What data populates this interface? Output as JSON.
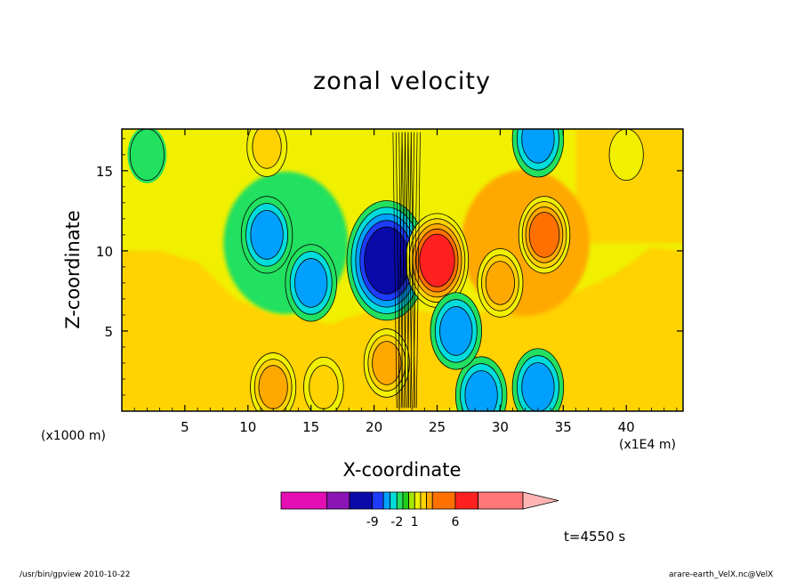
{
  "chart_data": {
    "type": "heatmap",
    "title": "zonal velocity",
    "xlabel": "X-coordinate",
    "ylabel": "Z-coordinate",
    "x_unit": "(x1000 m)",
    "x_scale_note": "(x1E4 m)",
    "xlim": [
      0,
      44.5
    ],
    "ylim": [
      0,
      17.6
    ],
    "x_ticks": [
      5,
      10,
      15,
      20,
      25,
      30,
      35,
      40
    ],
    "y_ticks": [
      5,
      10,
      15
    ],
    "x_tick_labels": [
      "5",
      "10",
      "15",
      "20",
      "25",
      "30",
      "35",
      "40"
    ],
    "y_tick_labels": [
      "5",
      "10",
      "15"
    ],
    "grid": false,
    "colorbar": {
      "levels": [
        -15,
        -12,
        -9,
        -6,
        -4,
        -2,
        -1,
        0,
        1,
        2,
        3,
        4,
        6,
        9,
        12
      ],
      "labels": [
        "-9",
        "-2",
        "1",
        "6"
      ],
      "label_values": [
        -9,
        -2,
        1,
        6
      ],
      "colors": [
        "#e40eb4",
        "#8a14b4",
        "#0a0aa8",
        "#1e3cff",
        "#00a0ff",
        "#00dcdc",
        "#22e060",
        "#22cc18",
        "#a6e600",
        "#f0f000",
        "#ffd200",
        "#ffa800",
        "#ff7000",
        "#ff2020",
        "#ff7878",
        "#ffb4b4"
      ]
    },
    "features": [
      {
        "x": 21.0,
        "z": 9.4,
        "value": -9
      },
      {
        "x": 25.0,
        "z": 9.4,
        "value": 6
      },
      {
        "x": 11.5,
        "z": 11.0,
        "value": -4
      },
      {
        "x": 33.5,
        "z": 11.0,
        "value": 4
      },
      {
        "x": 15.0,
        "z": 8.0,
        "value": -4
      },
      {
        "x": 30.0,
        "z": 8.0,
        "value": 3
      },
      {
        "x": 12.0,
        "z": 1.5,
        "value": 3
      },
      {
        "x": 16.0,
        "z": 1.5,
        "value": 2
      },
      {
        "x": 21.0,
        "z": 3.0,
        "value": 3
      },
      {
        "x": 28.5,
        "z": 1.0,
        "value": -4
      },
      {
        "x": 33.0,
        "z": 1.5,
        "value": -4
      },
      {
        "x": 26.5,
        "z": 5.0,
        "value": -4
      },
      {
        "x": 33.0,
        "z": 17.0,
        "value": -4
      },
      {
        "x": 11.5,
        "z": 16.5,
        "value": 2
      },
      {
        "x": 40.0,
        "z": 16.0,
        "value": 1
      },
      {
        "x": 2.0,
        "z": 16.0,
        "value": -1
      }
    ]
  },
  "annotations": {
    "time": "t=4550 s",
    "footer_left": "/usr/bin/gpview   2010-10-22",
    "footer_right": "arare-earth_VelX.nc@VelX"
  }
}
